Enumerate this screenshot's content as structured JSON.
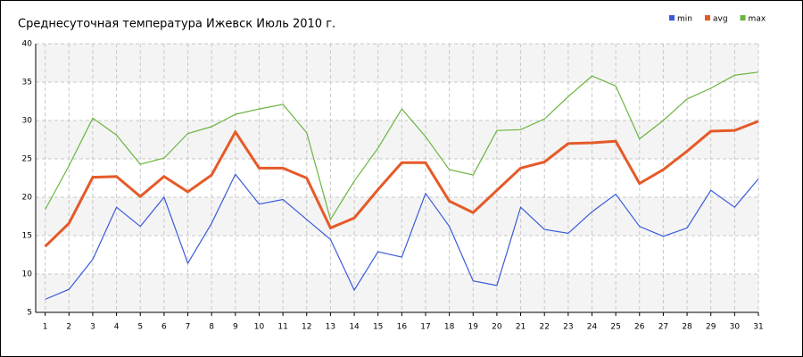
{
  "chart_data": {
    "type": "line",
    "title": "Среднесуточная температура Ижевск  Июль 2010 г.",
    "x": [
      1,
      2,
      3,
      4,
      5,
      6,
      7,
      8,
      9,
      10,
      11,
      12,
      13,
      14,
      15,
      16,
      17,
      18,
      19,
      20,
      21,
      22,
      23,
      24,
      25,
      26,
      27,
      28,
      29,
      30,
      31
    ],
    "series": [
      {
        "name": "min",
        "color": "#3a5bd9",
        "values": [
          6.7,
          8.0,
          11.9,
          18.7,
          16.2,
          20.0,
          11.4,
          16.6,
          23.0,
          19.1,
          19.7,
          17.1,
          14.5,
          7.9,
          12.9,
          12.2,
          20.5,
          16.2,
          9.1,
          8.5,
          18.7,
          15.8,
          15.3,
          18.1,
          20.4,
          16.2,
          14.9,
          16.0,
          20.9,
          18.7,
          22.4
        ]
      },
      {
        "name": "avg",
        "color": "#e55a28",
        "values": [
          13.6,
          16.6,
          22.6,
          22.7,
          20.1,
          22.7,
          20.7,
          22.9,
          28.5,
          23.8,
          23.8,
          22.5,
          16.0,
          17.3,
          21.0,
          24.5,
          24.5,
          19.5,
          18.0,
          20.9,
          23.8,
          24.6,
          27.0,
          27.1,
          27.3,
          21.8,
          23.6,
          26.0,
          28.6,
          28.7,
          29.9
        ]
      },
      {
        "name": "max",
        "color": "#6ab53f",
        "values": [
          18.4,
          24.1,
          30.3,
          28.1,
          24.3,
          25.1,
          28.3,
          29.2,
          30.8,
          31.5,
          32.1,
          28.4,
          17.1,
          22.1,
          26.4,
          31.5,
          27.9,
          23.6,
          22.9,
          28.7,
          28.8,
          30.2,
          33.1,
          35.8,
          34.5,
          27.6,
          30.0,
          32.8,
          34.2,
          35.9,
          36.3
        ]
      }
    ],
    "xlim": [
      0.6,
      31
    ],
    "xticks": [
      1,
      2,
      3,
      4,
      5,
      6,
      7,
      8,
      9,
      10,
      11,
      12,
      13,
      14,
      15,
      16,
      17,
      18,
      19,
      20,
      21,
      22,
      23,
      24,
      25,
      26,
      27,
      28,
      29,
      30,
      31
    ],
    "ylim": [
      5,
      40
    ],
    "yticks": [
      5,
      10,
      15,
      20,
      25,
      30,
      35,
      40
    ],
    "grid": true,
    "legend": "upper right"
  }
}
